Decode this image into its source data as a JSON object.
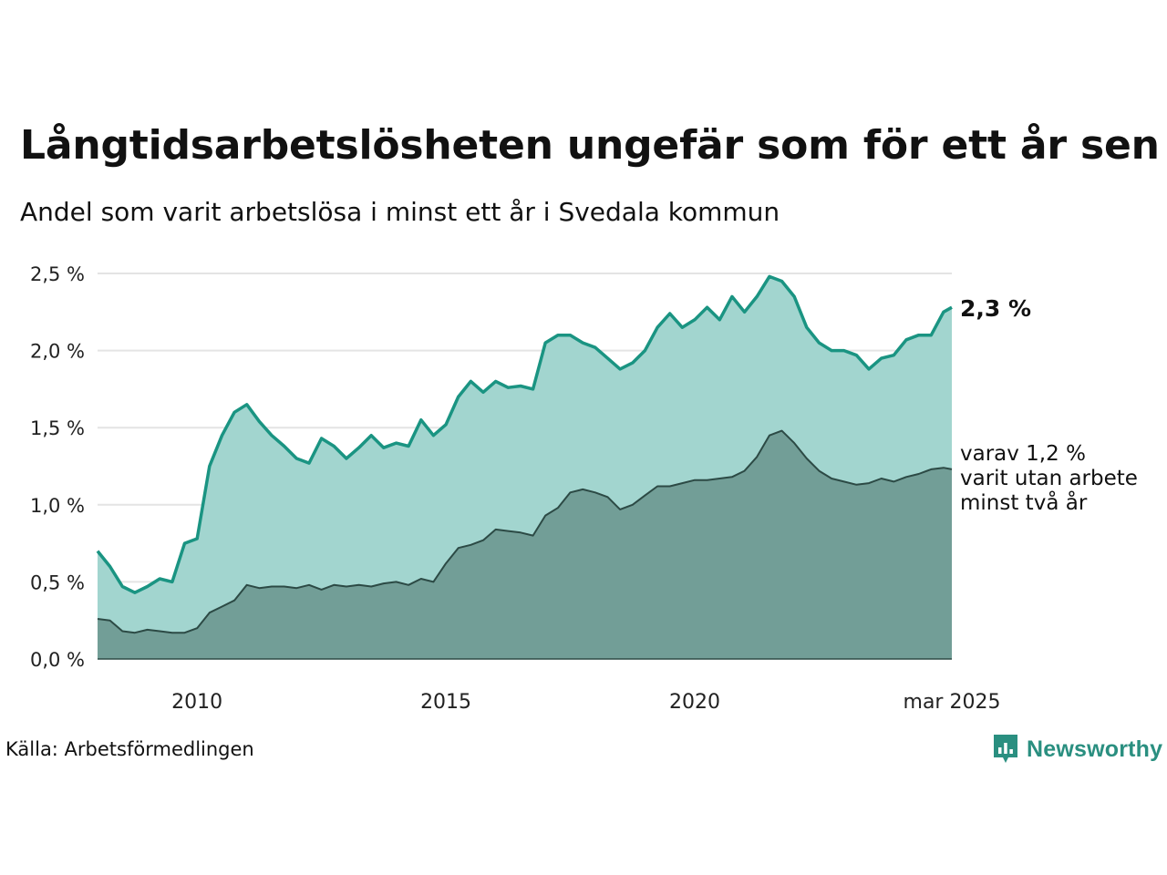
{
  "header": {
    "title": "Långtidsarbetslösheten ungefär som för ett år sen",
    "subtitle": "Andel som varit arbetslösa i minst ett år i Svedala kommun"
  },
  "footer": {
    "source": "Källa: Arbetsförmedlingen",
    "brand": "Newsworthy"
  },
  "chart_data": {
    "type": "area",
    "title": "Långtidsarbetslösheten ungefär som för ett år sen",
    "subtitle": "Andel som varit arbetslösa i minst ett år i Svedala kommun",
    "y_unit": "%",
    "ylim": [
      0,
      2.5
    ],
    "y_ticks": [
      "0,0 %",
      "0,5 %",
      "1,0 %",
      "1,5 %",
      "2,0 %",
      "2,5 %"
    ],
    "y_tick_values": [
      0,
      0.5,
      1.0,
      1.5,
      2.0,
      2.5
    ],
    "xlim": [
      "2008-01",
      "2025-03"
    ],
    "x_ticks": [
      "2010",
      "2015",
      "2020",
      "mar 2025"
    ],
    "x_tick_dates": [
      "2010-01",
      "2015-01",
      "2020-01",
      "2025-03"
    ],
    "grid": "horizontal",
    "legend": "none",
    "colors": {
      "series1_fill": "#a2d5cf",
      "series1_line": "#1a9482",
      "series2_fill": "#729e97",
      "series2_line": "#2c4a45",
      "grid": "#e4e4e4"
    },
    "end_labels": {
      "series1": "2,3 %",
      "series2": [
        "varav 1,2 %",
        "varit utan arbete",
        "minst två år"
      ]
    },
    "x": [
      "2008-01",
      "2008-04",
      "2008-07",
      "2008-10",
      "2009-01",
      "2009-04",
      "2009-07",
      "2009-10",
      "2010-01",
      "2010-04",
      "2010-07",
      "2010-10",
      "2011-01",
      "2011-04",
      "2011-07",
      "2011-10",
      "2012-01",
      "2012-04",
      "2012-07",
      "2012-10",
      "2013-01",
      "2013-04",
      "2013-07",
      "2013-10",
      "2014-01",
      "2014-04",
      "2014-07",
      "2014-10",
      "2015-01",
      "2015-04",
      "2015-07",
      "2015-10",
      "2016-01",
      "2016-04",
      "2016-07",
      "2016-10",
      "2017-01",
      "2017-04",
      "2017-07",
      "2017-10",
      "2018-01",
      "2018-04",
      "2018-07",
      "2018-10",
      "2019-01",
      "2019-04",
      "2019-07",
      "2019-10",
      "2020-01",
      "2020-04",
      "2020-07",
      "2020-10",
      "2021-01",
      "2021-04",
      "2021-07",
      "2021-10",
      "2022-01",
      "2022-04",
      "2022-07",
      "2022-10",
      "2023-01",
      "2023-04",
      "2023-07",
      "2023-10",
      "2024-01",
      "2024-04",
      "2024-07",
      "2024-10",
      "2025-01",
      "2025-03"
    ],
    "series": [
      {
        "values": [
          0.7,
          0.6,
          0.47,
          0.43,
          0.47,
          0.52,
          0.5,
          0.75,
          0.78,
          1.25,
          1.45,
          1.6,
          1.65,
          1.54,
          1.45,
          1.38,
          1.3,
          1.27,
          1.43,
          1.38,
          1.3,
          1.37,
          1.45,
          1.37,
          1.4,
          1.38,
          1.55,
          1.45,
          1.52,
          1.7,
          1.8,
          1.73,
          1.8,
          1.76,
          1.77,
          1.75,
          2.05,
          2.1,
          2.1,
          2.05,
          2.02,
          1.95,
          1.88,
          1.92,
          2.0,
          2.15,
          2.24,
          2.15,
          2.2,
          2.28,
          2.2,
          2.35,
          2.25,
          2.35,
          2.48,
          2.45,
          2.35,
          2.15,
          2.05,
          2.0,
          2.0,
          1.97,
          1.88,
          1.95,
          1.97,
          2.07,
          2.1,
          2.1,
          2.25,
          2.28
        ]
      },
      {
        "values": [
          0.26,
          0.25,
          0.18,
          0.17,
          0.19,
          0.18,
          0.17,
          0.17,
          0.2,
          0.3,
          0.34,
          0.38,
          0.48,
          0.46,
          0.47,
          0.47,
          0.46,
          0.48,
          0.45,
          0.48,
          0.47,
          0.48,
          0.47,
          0.49,
          0.5,
          0.48,
          0.52,
          0.5,
          0.62,
          0.72,
          0.74,
          0.77,
          0.84,
          0.83,
          0.82,
          0.8,
          0.93,
          0.98,
          1.08,
          1.1,
          1.08,
          1.05,
          0.97,
          1.0,
          1.06,
          1.12,
          1.12,
          1.14,
          1.16,
          1.16,
          1.17,
          1.18,
          1.22,
          1.31,
          1.45,
          1.48,
          1.4,
          1.3,
          1.22,
          1.17,
          1.15,
          1.13,
          1.14,
          1.17,
          1.15,
          1.18,
          1.2,
          1.23,
          1.24,
          1.23
        ]
      }
    ]
  }
}
